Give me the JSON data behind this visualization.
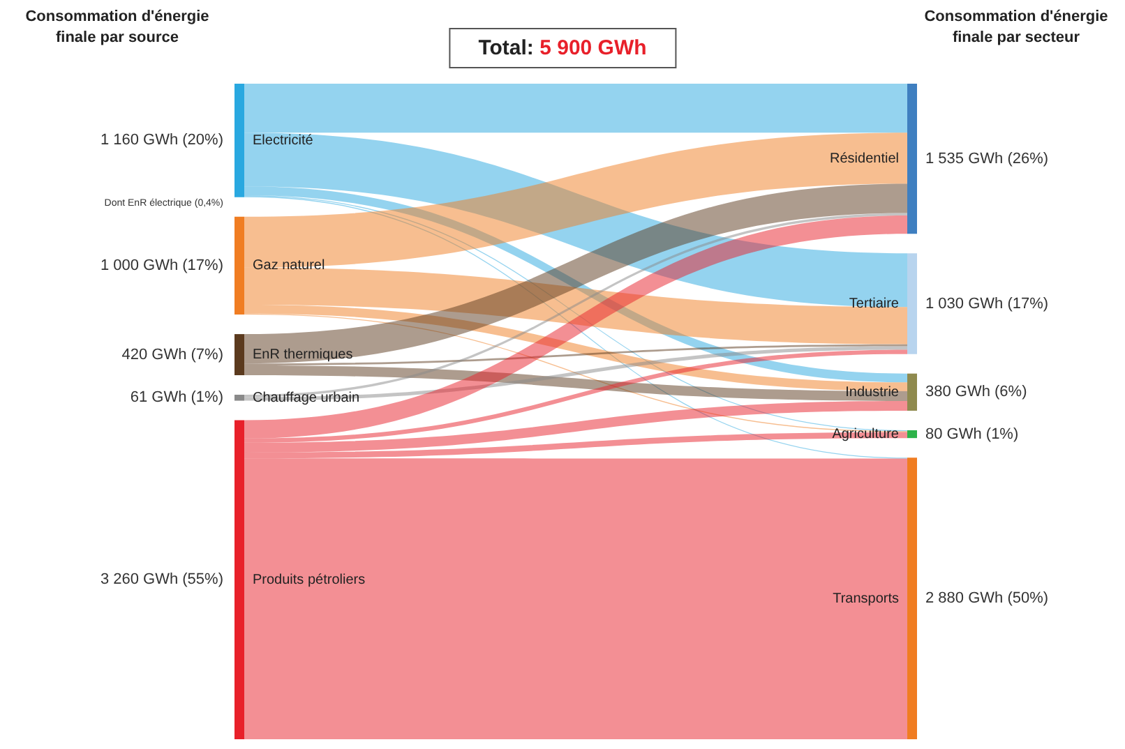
{
  "chart_data": [
    {
      "type": "other",
      "title": "Consommation d'énergie finale par source",
      "categories": [
        "Electricité",
        "Gaz naturel",
        "EnR thermiques",
        "Chauffage urbain",
        "Produits pétroliers"
      ],
      "values": [
        1160,
        1000,
        420,
        61,
        3260
      ],
      "value_labels": [
        "1 160 GWh (20%)",
        "1 000 GWh (17%)",
        "420 GWh (7%)",
        "61 GWh (1%)",
        "3 260 GWh (55%)"
      ],
      "colors": [
        "#29a8e0",
        "#f07d22",
        "#5b3a1e",
        "#8a8a8a",
        "#e8202a"
      ],
      "annotations": [
        "Dont EnR électrique (0,4%)",
        "Total:",
        "5 900 GWh"
      ]
    },
    {
      "type": "other",
      "title": "Consommation d'énergie finale par secteur",
      "categories": [
        "Résidentiel",
        "Tertiaire",
        "Industrie",
        "Agriculture",
        "Transports"
      ],
      "values": [
        1535,
        1030,
        380,
        80,
        2880
      ],
      "value_labels": [
        "1 535 GWh (26%)",
        "1 030 GWh (17%)",
        "380 GWh (6%)",
        "80 GWh (1%)",
        "2 880 GWh (50%)"
      ],
      "colors": [
        "#3f7fc0",
        "#b8d4ee",
        "#8f8a4e",
        "#2db34a",
        "#f07d22"
      ]
    }
  ]
}
